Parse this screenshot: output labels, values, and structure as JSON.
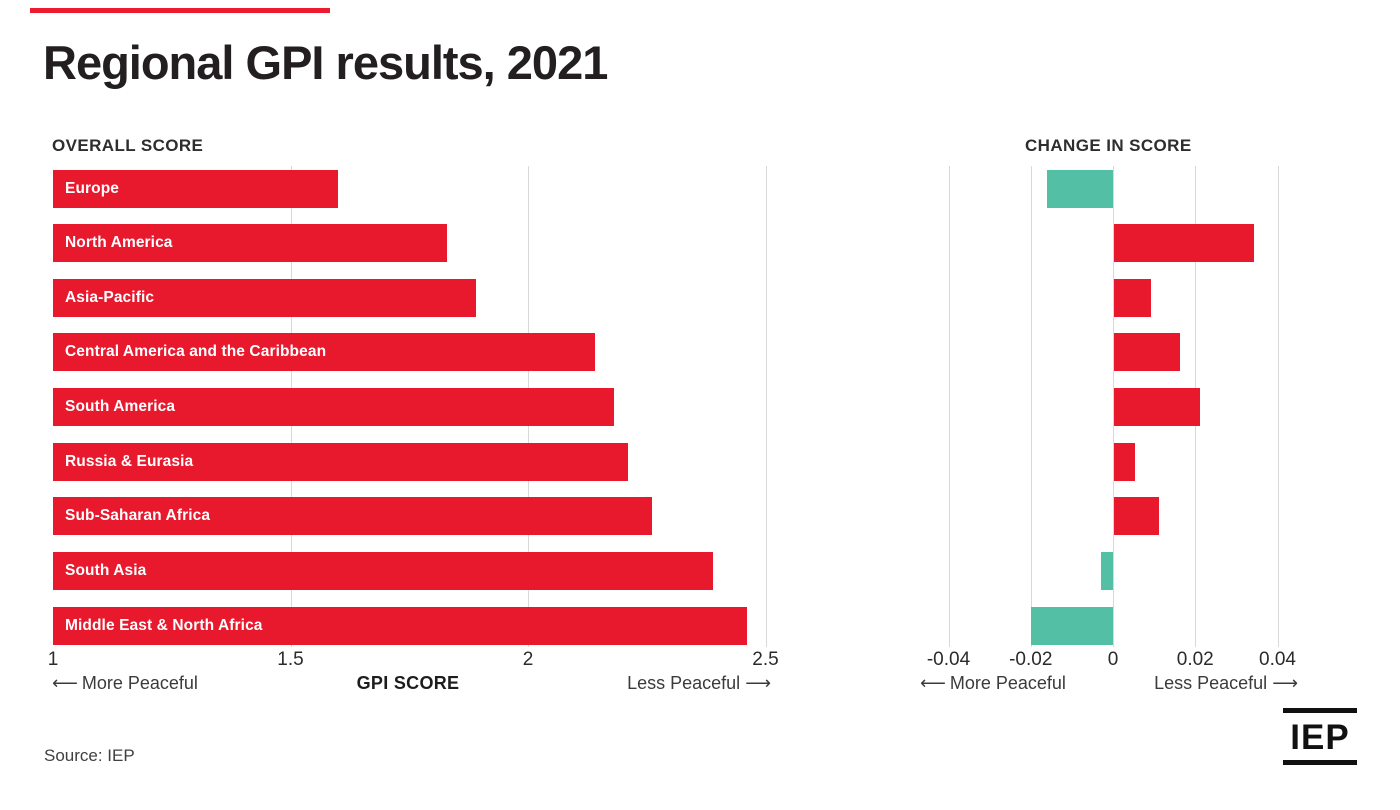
{
  "title": "Regional GPI results, 2021",
  "source": "Source: IEP",
  "logo_text": "IEP",
  "icons": {
    "arrow_left": "⟵",
    "arrow_right": "⟶"
  },
  "colors": {
    "red": "#E8182D",
    "teal": "#53BFA5",
    "grid": "#D8D8D8",
    "ink": "#231F20",
    "text_muted": "#3B3B3B"
  },
  "left_chart": {
    "header": "OVERALL SCORE",
    "axis_title": "GPI SCORE",
    "more_label": "More Peaceful",
    "less_label": "Less Peaceful",
    "tick_labels": [
      "1",
      "1.5",
      "2",
      "2.5"
    ]
  },
  "right_chart": {
    "header": "CHANGE IN SCORE",
    "more_label": "More Peaceful",
    "less_label": "Less Peaceful",
    "tick_labels": [
      "-0.04",
      "-0.02",
      "0",
      "0.02",
      "0.04"
    ]
  },
  "chart_data": [
    {
      "type": "bar",
      "orientation": "horizontal",
      "title": "OVERALL SCORE",
      "xlabel": "GPI SCORE",
      "xlim": [
        1,
        2.5
      ],
      "ticks": [
        1,
        1.5,
        2,
        2.5
      ],
      "gridlines": [
        1.5,
        2,
        2.5
      ],
      "grid": true,
      "bar_color": "#E8182D",
      "categories": [
        "Europe",
        "North America",
        "Asia-Pacific",
        "Central America and the Caribbean",
        "South America",
        "Russia & Eurasia",
        "Sub-Saharan Africa",
        "South Asia",
        "Middle East & North Africa"
      ],
      "values": [
        1.6,
        1.83,
        1.89,
        2.14,
        2.18,
        2.21,
        2.26,
        2.39,
        2.46
      ],
      "labels_inside_bars": true
    },
    {
      "type": "bar",
      "orientation": "horizontal",
      "title": "CHANGE IN SCORE",
      "xlabel": "",
      "xlim": [
        -0.05,
        0.045
      ],
      "ticks": [
        -0.04,
        -0.02,
        0,
        0.02,
        0.04
      ],
      "gridlines": [
        -0.04,
        -0.02,
        0,
        0.02,
        0.04
      ],
      "grid": true,
      "positive_color": "#E8182D",
      "negative_color": "#53BFA5",
      "categories": [
        "Europe",
        "North America",
        "Asia-Pacific",
        "Central America and the Caribbean",
        "South America",
        "Russia & Eurasia",
        "Sub-Saharan Africa",
        "South Asia",
        "Middle East & North Africa"
      ],
      "values": [
        -0.016,
        0.034,
        0.009,
        0.016,
        0.021,
        0.005,
        0.011,
        -0.003,
        -0.02
      ],
      "labels_inside_bars": false
    }
  ]
}
